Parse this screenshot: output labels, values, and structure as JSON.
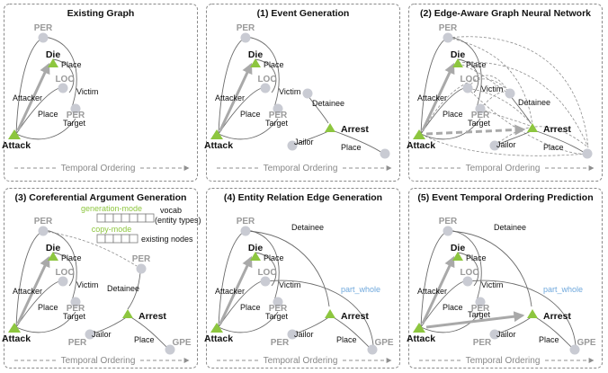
{
  "panels": [
    {
      "title": "Existing Graph"
    },
    {
      "title": "(1) Event Generation"
    },
    {
      "title": "(2) Edge-Aware Graph Neural Network"
    },
    {
      "title": "(3) Coreferential Argument Generation"
    },
    {
      "title": "(4) Entity Relation Edge Generation"
    },
    {
      "title": "(5) Event Temporal Ordering Prediction"
    }
  ],
  "labels": {
    "temporal_ordering": "Temporal Ordering",
    "per": "PER",
    "loc": "LOC",
    "gpe": "GPE",
    "die": "Die",
    "attack": "Attack",
    "arrest": "Arrest",
    "attacker": "Attacker",
    "place": "Place",
    "victim": "Victim",
    "target": "Target",
    "detainee": "Detainee",
    "jailor": "Jailor",
    "part_whole": "part_whole",
    "generation_mode": "generation-mode",
    "copy_mode": "copy-mode",
    "vocab": "vocab",
    "entity_types": "(entity types)",
    "existing_nodes": "existing nodes"
  },
  "colors": {
    "trigger": "#8dc63f",
    "node": "#c9cbd3",
    "relation": "#6fa8dc",
    "generation": "#8dc63f"
  }
}
